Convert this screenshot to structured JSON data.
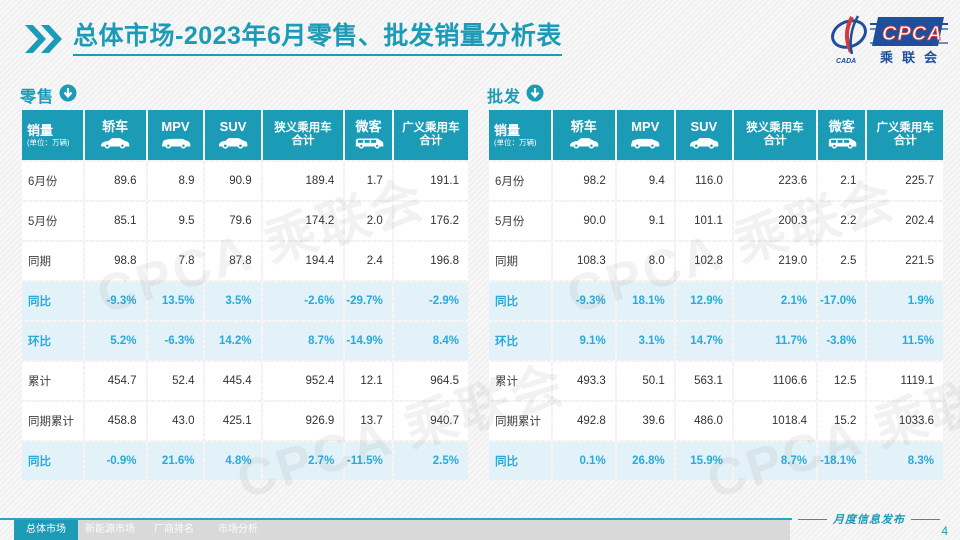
{
  "title": {
    "prefix": "总体市场",
    "rest": "-2023年6月零售、批发销量分析表"
  },
  "logo": {
    "cpca": "CPCA",
    "assoc": "乘联会",
    "cada": "CADA"
  },
  "table_header": {
    "sales": "销量",
    "unit": "(单位：万辆)",
    "columns": [
      {
        "label": "轿车",
        "icon": "sedan-icon"
      },
      {
        "label": "MPV",
        "icon": "mpv-icon"
      },
      {
        "label": "SUV",
        "icon": "suv-icon"
      },
      {
        "label": "狭义乘用车合计",
        "line1": "狭义乘用车",
        "line2": "合计"
      },
      {
        "label": "微客",
        "icon": "microvan-icon"
      },
      {
        "label": "广义乘用车合计",
        "line1": "广义乘用车",
        "line2": "合计"
      }
    ]
  },
  "retail": {
    "title": "零售",
    "title_icon": "down-arrow-circle-icon",
    "rows": [
      {
        "label": "6月份",
        "type": "normal",
        "values": [
          "89.6",
          "8.9",
          "90.9",
          "189.4",
          "1.7",
          "191.1"
        ]
      },
      {
        "label": "5月份",
        "type": "normal",
        "values": [
          "85.1",
          "9.5",
          "79.6",
          "174.2",
          "2.0",
          "176.2"
        ]
      },
      {
        "label": "同期",
        "type": "normal",
        "values": [
          "98.8",
          "7.8",
          "87.8",
          "194.4",
          "2.4",
          "196.8"
        ]
      },
      {
        "label": "同比",
        "type": "pct",
        "values": [
          "-9.3%",
          "13.5%",
          "3.5%",
          "-2.6%",
          "-29.7%",
          "-2.9%"
        ]
      },
      {
        "label": "环比",
        "type": "pct",
        "values": [
          "5.2%",
          "-6.3%",
          "14.2%",
          "8.7%",
          "-14.9%",
          "8.4%"
        ]
      },
      {
        "label": "累计",
        "type": "normal",
        "values": [
          "454.7",
          "52.4",
          "445.4",
          "952.4",
          "12.1",
          "964.5"
        ]
      },
      {
        "label": "同期累计",
        "type": "normal",
        "values": [
          "458.8",
          "43.0",
          "425.1",
          "926.9",
          "13.7",
          "940.7"
        ]
      },
      {
        "label": "同比",
        "type": "pct",
        "values": [
          "-0.9%",
          "21.6%",
          "4.8%",
          "2.7%",
          "-11.5%",
          "2.5%"
        ]
      }
    ]
  },
  "wholesale": {
    "title": "批发",
    "title_icon": "down-arrow-circle-icon",
    "rows": [
      {
        "label": "6月份",
        "type": "normal",
        "values": [
          "98.2",
          "9.4",
          "116.0",
          "223.6",
          "2.1",
          "225.7"
        ]
      },
      {
        "label": "5月份",
        "type": "normal",
        "values": [
          "90.0",
          "9.1",
          "101.1",
          "200.3",
          "2.2",
          "202.4"
        ]
      },
      {
        "label": "同期",
        "type": "normal",
        "values": [
          "108.3",
          "8.0",
          "102.8",
          "219.0",
          "2.5",
          "221.5"
        ]
      },
      {
        "label": "同比",
        "type": "pct",
        "values": [
          "-9.3%",
          "18.1%",
          "12.9%",
          "2.1%",
          "-17.0%",
          "1.9%"
        ]
      },
      {
        "label": "环比",
        "type": "pct",
        "values": [
          "9.1%",
          "3.1%",
          "14.7%",
          "11.7%",
          "-3.8%",
          "11.5%"
        ]
      },
      {
        "label": "累计",
        "type": "normal",
        "values": [
          "493.3",
          "50.1",
          "563.1",
          "1106.6",
          "12.5",
          "1119.1"
        ]
      },
      {
        "label": "同期累计",
        "type": "normal",
        "values": [
          "492.8",
          "39.6",
          "486.0",
          "1018.4",
          "15.2",
          "1033.6"
        ]
      },
      {
        "label": "同比",
        "type": "pct",
        "values": [
          "0.1%",
          "26.8%",
          "15.9%",
          "8.7%",
          "-18.1%",
          "8.3%"
        ]
      }
    ]
  },
  "footer": {
    "tabs": [
      {
        "label": "总体市场",
        "active": true
      },
      {
        "label": "新能源市场",
        "active": false
      },
      {
        "label": "厂商排名",
        "active": false
      },
      {
        "label": "市场分析",
        "active": false
      }
    ],
    "note": "月度信息发布",
    "page": "4"
  },
  "watermark": "CPCA 乘联会",
  "colors": {
    "teal": "#1b9bb6",
    "cyan_highlight": "#29a9d8",
    "highlight_row_bg": "#e3f1f8",
    "logo_blue": "#1d4f9e",
    "logo_red": "#d43a3a"
  }
}
